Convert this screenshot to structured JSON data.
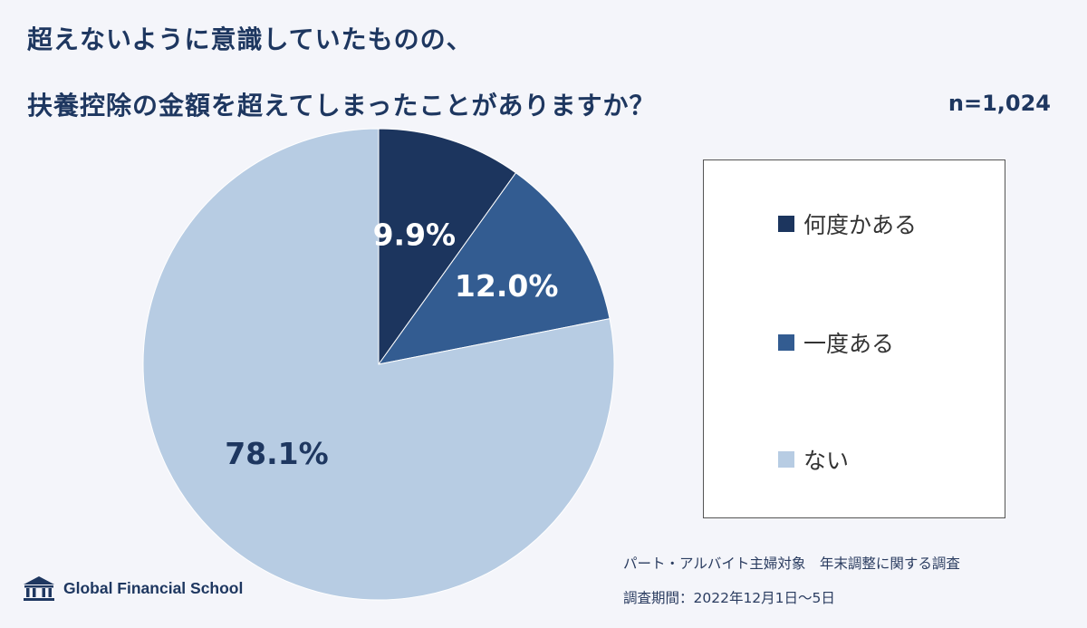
{
  "title_line1": "超えないように意識していたものの、",
  "title_line2": "扶養控除の金額を超えてしまったことがありますか？",
  "sample_size": "n=1,024",
  "chart_data": {
    "type": "pie",
    "title": "超えないように意識していたものの、扶養控除の金額を超えてしまったことがありますか？",
    "categories": [
      "何度かある",
      "一度ある",
      "ない"
    ],
    "values": [
      9.9,
      12.0,
      78.1
    ],
    "labels": [
      "9.9%",
      "12.0%",
      "78.1%"
    ],
    "colors": [
      "#1c355e",
      "#335c91",
      "#b7cce3"
    ],
    "label_colors": [
      "#ffffff",
      "#ffffff",
      "#1e3760"
    ],
    "legend_position": "right"
  },
  "legend": [
    "何度かある",
    "一度ある",
    "ない"
  ],
  "footer": {
    "line1": "パート・アルバイト主婦対象　年末調整に関する調査",
    "line2": "調査期間：2022年12月1日〜5日"
  },
  "brand": {
    "name": "Global Financial School",
    "icon": "school-building-icon"
  }
}
